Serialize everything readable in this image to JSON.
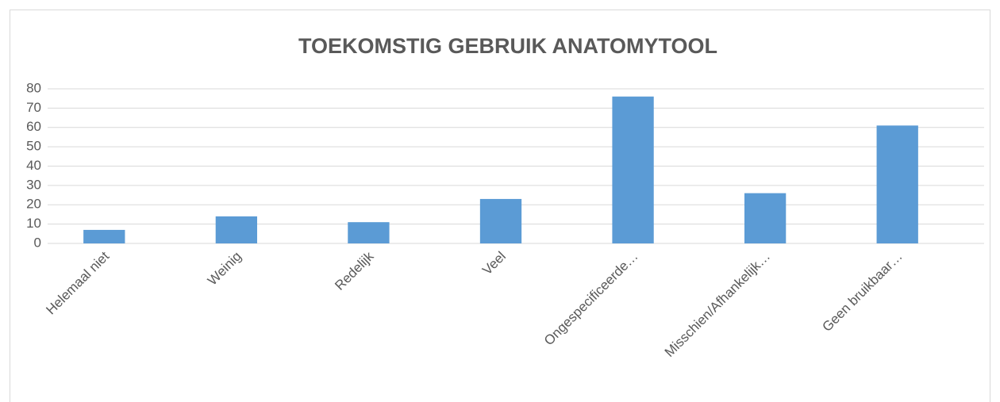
{
  "chart_data": {
    "type": "bar",
    "title": "TOEKOMSTIG GEBRUIK ANATOMYTOOL",
    "categories": [
      "Helemaal niet",
      "Weinig",
      "Redelijk",
      "Veel",
      "Ongespecificeerde…",
      "Misschien/Afhankelijk…",
      "Geen bruikbaar…"
    ],
    "values": [
      7,
      14,
      11,
      23,
      76,
      26,
      61
    ],
    "color": "#5b9bd5",
    "ylim": [
      0,
      80
    ],
    "yticks": [
      0,
      10,
      20,
      30,
      40,
      50,
      60,
      70,
      80
    ],
    "grid": true
  }
}
